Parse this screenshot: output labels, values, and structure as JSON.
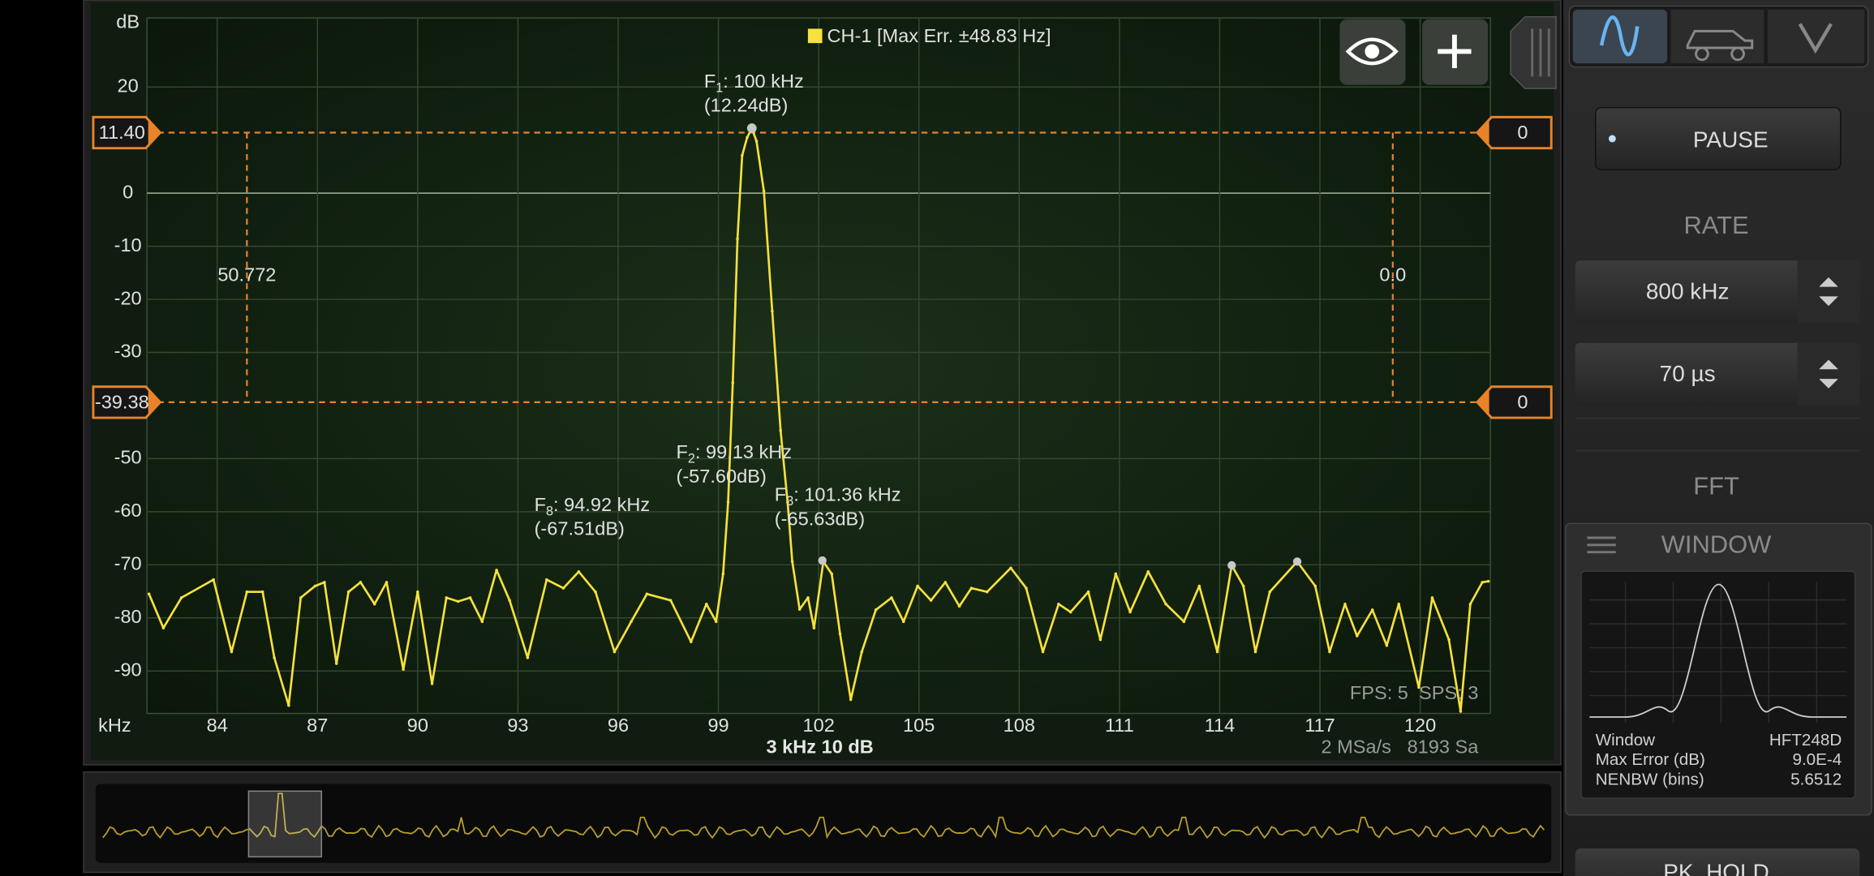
{
  "chart_data": {
    "type": "line",
    "x_label": "kHz",
    "y_label": "dB",
    "x": [
      81.96,
      82.39,
      82.93,
      83.89,
      84.43,
      84.89,
      85.36,
      85.71,
      86.14,
      86.5,
      86.93,
      87.21,
      87.57,
      87.93,
      88.29,
      88.71,
      89.07,
      89.57,
      90.0,
      90.43,
      90.86,
      91.21,
      91.57,
      91.93,
      92.36,
      92.75,
      93.29,
      93.86,
      94.36,
      94.82,
      95.32,
      95.89,
      96.39,
      96.86,
      97.57,
      98.18,
      98.64,
      98.93,
      99.14,
      99.29,
      99.43,
      99.57,
      99.71,
      99.86,
      100.0,
      100.14,
      100.36,
      100.61,
      100.86,
      101.07,
      101.21,
      101.43,
      101.68,
      101.86,
      102.14,
      102.39,
      102.64,
      102.96,
      103.29,
      103.71,
      104.18,
      104.54,
      104.96,
      105.36,
      105.79,
      106.21,
      106.57,
      107.04,
      107.75,
      108.21,
      108.71,
      109.18,
      109.54,
      110.07,
      110.43,
      110.89,
      111.32,
      111.86,
      112.39,
      112.93,
      113.39,
      113.93,
      114.36,
      114.71,
      115.07,
      115.5,
      116.32,
      116.86,
      117.29,
      117.75,
      118.11,
      118.57,
      119.0,
      119.36,
      119.96,
      120.36,
      120.86,
      121.21,
      121.5,
      121.86,
      122.04
    ],
    "series": [
      {
        "name": "CH-1 [Max Err. ±48.83 Hz]",
        "color": "#f7e13c",
        "values": [
          -75.5,
          -81.9,
          -76.2,
          -72.8,
          -86.4,
          -75.1,
          -75.1,
          -87.5,
          -96.5,
          -76.2,
          -74.0,
          -73.3,
          -88.6,
          -75.1,
          -73.3,
          -77.4,
          -73.3,
          -89.7,
          -75.1,
          -92.4,
          -76.2,
          -76.9,
          -76.2,
          -80.7,
          -71.0,
          -76.7,
          -87.5,
          -72.8,
          -74.4,
          -71.3,
          -75.1,
          -86.4,
          -80.7,
          -75.5,
          -76.7,
          -84.5,
          -77.4,
          -80.7,
          -71.7,
          -58.2,
          -35.7,
          -8.6,
          7.1,
          10.5,
          12.24,
          9.8,
          0.4,
          -22.2,
          -44.7,
          -58.2,
          -69.4,
          -78.4,
          -76.2,
          -81.9,
          -69.4,
          -71.7,
          -83.0,
          -95.4,
          -86.4,
          -78.5,
          -76.2,
          -80.7,
          -74.0,
          -76.7,
          -73.3,
          -77.8,
          -74.4,
          -75.1,
          -70.6,
          -74.4,
          -86.4,
          -77.4,
          -78.9,
          -75.1,
          -84.1,
          -71.7,
          -78.9,
          -71.3,
          -77.4,
          -80.7,
          -74.0,
          -86.4,
          -70.1,
          -74.0,
          -86.4,
          -75.1,
          -69.4,
          -74.0,
          -86.4,
          -77.4,
          -83.4,
          -78.5,
          -85.2,
          -77.4,
          -93.1,
          -76.2,
          -84.1,
          -97.6,
          -77.4,
          -73.3,
          -73.1
        ]
      }
    ],
    "xlim": [
      81.9,
      122.1
    ],
    "ylim": [
      -98,
      33
    ],
    "xticks": [
      84,
      87,
      90,
      93,
      96,
      99,
      102,
      105,
      108,
      111,
      114,
      117,
      120
    ],
    "yticks": [
      20,
      0,
      -10,
      -20,
      -30,
      -50,
      -60,
      -70,
      -80,
      -90
    ],
    "grid": true,
    "cursors": {
      "color": "#e8832a",
      "levels": [
        {
          "value": 11.4,
          "label": "11.40"
        },
        -39.38
      ],
      "level_right_labels": [
        "0",
        "0"
      ],
      "positions": [
        84.89,
        119.18
      ],
      "position_labels": [
        "50.772",
        "0.0"
      ]
    },
    "markers": [
      {
        "name": "F",
        "index": "1",
        "freq": ": 100 kHz",
        "level": "(12.24dB)",
        "x": 100,
        "y": 12.24,
        "dot": true
      },
      {
        "name": "F",
        "index": "2",
        "freq": ": 99.13 kHz",
        "level": "(-57.60dB)",
        "x": 99.13,
        "y": -57.6,
        "dot": false
      },
      {
        "name": "F",
        "index": "3",
        "freq": ": 101.36 kHz",
        "level": "(-65.63dB)",
        "x": 101.36,
        "y": -65.63,
        "dot": false
      },
      {
        "name": "F",
        "index": "8",
        "freq": ": 94.92 kHz",
        "level": "(-67.51dB)",
        "x": 94.92,
        "y": -67.51,
        "dot": false
      }
    ],
    "peak_dots": {
      "x": [
        102.11,
        114.36,
        116.32
      ],
      "y": [
        -69.2,
        -70.1,
        -69.4
      ]
    },
    "scale_info": "3 kHz  10 dB",
    "sample_info": "2 MSa/s   8193 Sa",
    "fps_info": "FPS: 5  SPS: 3"
  },
  "side_panel": {
    "pause": "PAUSE",
    "rate_title": "RATE",
    "rate": "800 kHz",
    "time": "70 µs",
    "fft_title": "FFT",
    "window_title": "WINDOW",
    "window_rows": [
      [
        "Window",
        "HFT248D"
      ],
      [
        "Max Error (dB)",
        "9.0E-4"
      ],
      [
        "NENBW (bins)",
        "5.6512"
      ]
    ],
    "hold": "PK. HOLD"
  }
}
